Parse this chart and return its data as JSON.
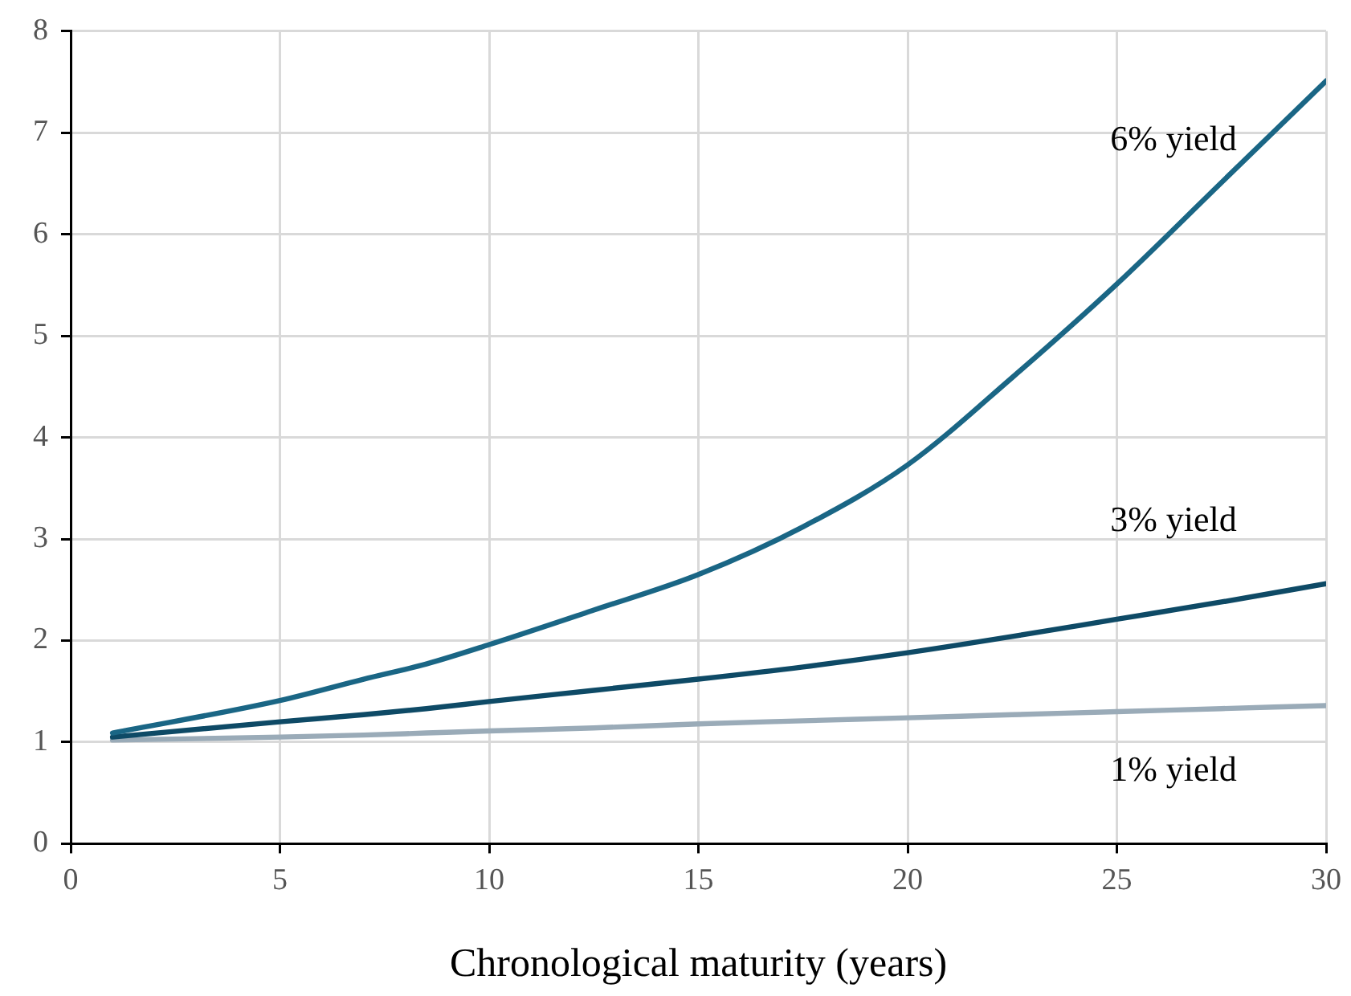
{
  "chart_data": {
    "type": "line",
    "xlabel": "Chronological maturity (years)",
    "xlim": [
      0,
      30
    ],
    "xticks": [
      0,
      5,
      10,
      15,
      20,
      25,
      30
    ],
    "ylim": [
      0,
      8
    ],
    "yticks": [
      0,
      1,
      2,
      3,
      4,
      5,
      6,
      7,
      8
    ],
    "grid": true,
    "legend": false,
    "marker": "none",
    "line_style": "solid",
    "x": [
      1,
      5,
      7,
      8.5,
      10,
      12.5,
      15,
      17.5,
      20,
      22.5,
      25,
      27.5,
      30
    ],
    "series": [
      {
        "name": "6% yield",
        "color": "#1a6685",
        "values": [
          1.09,
          1.41,
          1.62,
          1.77,
          1.96,
          2.3,
          2.65,
          3.12,
          3.73,
          4.59,
          5.51,
          6.51,
          7.51
        ]
      },
      {
        "name": "3% yield",
        "color": "#0e4a66",
        "values": [
          1.05,
          1.2,
          1.27,
          1.33,
          1.4,
          1.51,
          1.62,
          1.74,
          1.88,
          2.04,
          2.21,
          2.38,
          2.56
        ]
      },
      {
        "name": "1% yield",
        "color": "#9aabb8",
        "values": [
          1.02,
          1.05,
          1.07,
          1.09,
          1.11,
          1.14,
          1.18,
          1.21,
          1.24,
          1.27,
          1.3,
          1.33,
          1.36
        ]
      }
    ]
  }
}
